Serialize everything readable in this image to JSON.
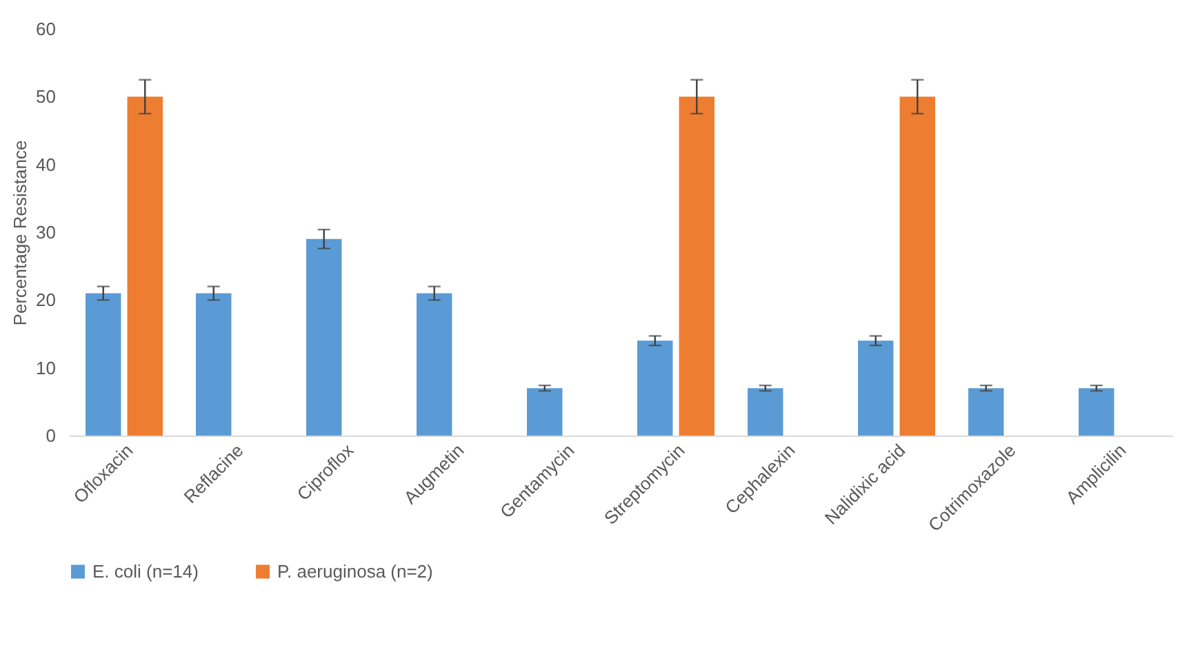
{
  "chart_data": {
    "type": "bar",
    "ylabel": "Percentage Resistance",
    "categories": [
      "Ofloxacin",
      "Reflacine",
      "Ciproflox",
      "Augmetin",
      "Gentamycin",
      "Streptomycin",
      "Cephalexin",
      "Nalidixic acid",
      "Cotrimoxazole",
      "Amplicilin"
    ],
    "series": [
      {
        "name": "E. coli (n=14)",
        "color": "#5b9bd5",
        "values": [
          21,
          21,
          29,
          21,
          7,
          14,
          7,
          14,
          7,
          7
        ],
        "errors": [
          1,
          1,
          1.4,
          1,
          0.4,
          0.7,
          0.4,
          0.7,
          0.4,
          0.4
        ]
      },
      {
        "name": "P. aeruginosa (n=2)",
        "color": "#ed7d31",
        "values": [
          50,
          null,
          null,
          null,
          null,
          50,
          null,
          50,
          null,
          null
        ],
        "errors": [
          2.5,
          null,
          null,
          null,
          null,
          2.5,
          null,
          2.5,
          null,
          null
        ]
      }
    ],
    "ylim": [
      0,
      60
    ],
    "yticks": [
      0,
      10,
      20,
      30,
      40,
      50,
      60
    ],
    "grid": false,
    "legend": "bottom"
  }
}
